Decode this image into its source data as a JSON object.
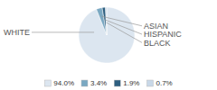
{
  "chart_data": {
    "type": "pie",
    "categories": [
      "WHITE",
      "ASIAN",
      "HISPANIC",
      "BLACK"
    ],
    "values": [
      94.0,
      3.4,
      1.9,
      0.7
    ],
    "value_labels": [
      "94.0%",
      "3.4%",
      "1.9%",
      "0.7%"
    ],
    "colors": [
      "#dce6f0",
      "#7aa8c2",
      "#2e5f80",
      "#c8d8e8"
    ],
    "legend": "bottom"
  }
}
